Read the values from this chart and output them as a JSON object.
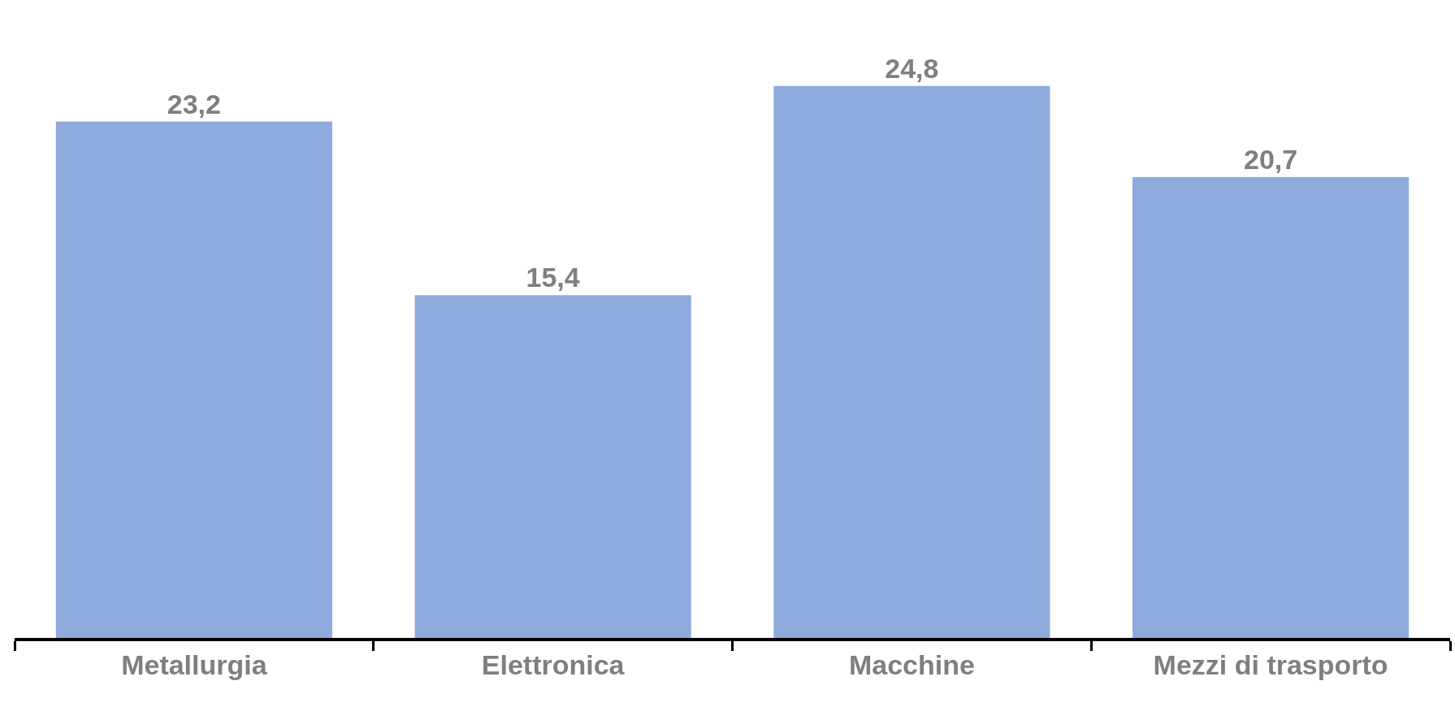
{
  "chart_data": {
    "type": "bar",
    "categories": [
      "Metallurgia",
      "Elettronica",
      "Macchine",
      "Mezzi di trasporto"
    ],
    "values": [
      23.2,
      15.4,
      24.8,
      20.7
    ],
    "value_labels": [
      "23,2",
      "15,4",
      "24,8",
      "20,7"
    ],
    "color": "#8faadc",
    "tick_labels": "x"
  }
}
